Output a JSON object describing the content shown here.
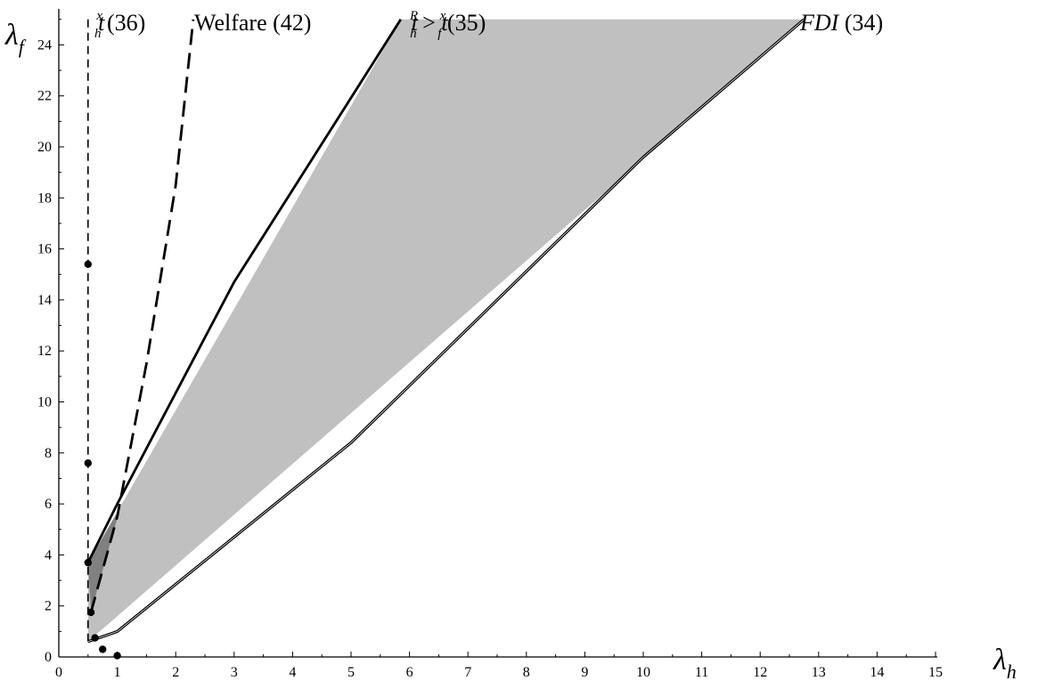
{
  "chart_data": {
    "type": "line",
    "title": "",
    "xlabel": {
      "symbol": "λ",
      "subscript": "h"
    },
    "ylabel": {
      "symbol": "λ",
      "subscript": "f"
    },
    "xlim": [
      0,
      15
    ],
    "ylim": [
      0,
      25
    ],
    "x_ticks": [
      0,
      1,
      2,
      3,
      4,
      5,
      6,
      7,
      8,
      9,
      10,
      11,
      12,
      13,
      14,
      15
    ],
    "y_ticks": [
      0,
      2,
      4,
      6,
      8,
      10,
      12,
      14,
      16,
      18,
      20,
      22,
      24
    ],
    "grid": false,
    "series": [
      {
        "name": "t_h^x (36)",
        "style": "dashed",
        "points": [
          [
            0.5,
            0.6
          ],
          [
            0.5,
            25
          ]
        ]
      },
      {
        "name": "Welfare (42)",
        "style": "dashed",
        "points": [
          [
            0.55,
            1.75
          ],
          [
            1.0,
            5.5
          ],
          [
            1.5,
            11.5
          ],
          [
            2.0,
            18.5
          ],
          [
            2.3,
            25
          ]
        ]
      },
      {
        "name": "t_h^R > t_f^x (35)",
        "style": "solid",
        "points": [
          [
            0.5,
            3.7
          ],
          [
            1.0,
            6.0
          ],
          [
            3.0,
            14.7
          ],
          [
            5.85,
            25
          ]
        ]
      },
      {
        "name": "FDI (34)",
        "style": "solid",
        "points": [
          [
            0.5,
            0.6
          ],
          [
            1.0,
            1.0
          ],
          [
            5.0,
            8.4
          ],
          [
            10.0,
            19.6
          ],
          [
            12.75,
            25
          ]
        ]
      }
    ],
    "regions": [
      {
        "fill": "#c0c0c0",
        "points": [
          [
            0.5,
            3.7
          ],
          [
            5.85,
            25
          ],
          [
            12.75,
            25
          ],
          [
            0.5,
            0.6
          ]
        ]
      },
      {
        "fill": "#808080",
        "points": [
          [
            0.5,
            3.7
          ],
          [
            1.05,
            5.85
          ],
          [
            0.55,
            1.75
          ]
        ]
      }
    ],
    "markers": [
      [
        0.5,
        15.4
      ],
      [
        0.5,
        7.6
      ],
      [
        0.55,
        1.75
      ],
      [
        0.62,
        0.75
      ],
      [
        0.75,
        0.3
      ],
      [
        1.0,
        0.05
      ],
      [
        0.5,
        3.7
      ]
    ],
    "labels": [
      {
        "label": "t",
        "sub": "h",
        "sup": "x",
        "suffix": " (36)"
      },
      {
        "label": "Welfare (42)"
      },
      {
        "label": "t",
        "sub": "h",
        "sup": "R",
        "mid": " > ",
        "label2": "t",
        "sub2": "f",
        "sup2": "x",
        "suffix": " (35)"
      },
      {
        "label": "FDI",
        "suffix": " (34)"
      }
    ]
  }
}
